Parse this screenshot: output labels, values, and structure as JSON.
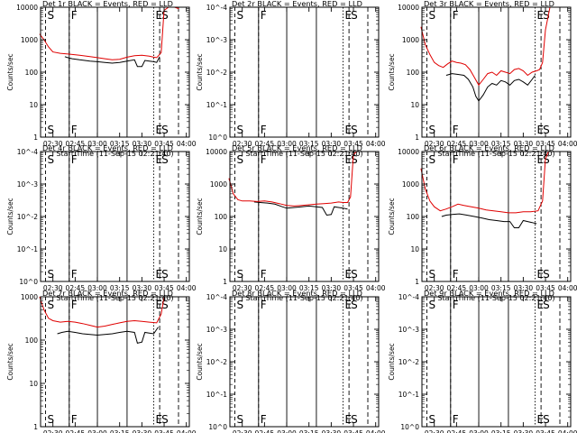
{
  "figure": {
    "x_axis_label": "Start Time (11-Sep-15 02:21:40)",
    "y_axis_label": "Counts/sec",
    "x_tick_labels": [
      "02:30",
      "02:45",
      "03:00",
      "03:15",
      "03:30",
      "03:45",
      "04:00"
    ],
    "y_tick_labels_decades": [
      "1",
      "10",
      "100",
      "1000",
      "10000"
    ],
    "y_tick_labels_flat": [
      "10^0",
      "10^-1",
      "10^-2",
      "10^-3",
      "10^-4"
    ],
    "colors": {
      "events": "#000000",
      "lld": "#e00000",
      "axes": "#000000"
    }
  },
  "chart_data": [
    {
      "id": "det1",
      "type": "line",
      "title": "Det 1r BLACK = Events, RED = LLD",
      "y_scale": "log",
      "ylim": [
        1,
        10000
      ],
      "xlim": [
        "02:21:40",
        "04:02:00"
      ],
      "has_data": true,
      "markers": [
        {
          "label": "S",
          "time": "02:25"
        },
        {
          "label": "F",
          "time": "02:41"
        },
        {
          "label": "E",
          "time": "03:38"
        },
        {
          "label": "S",
          "time": "03:42"
        }
      ],
      "series": [
        {
          "name": "BLACK = Events",
          "color": "#000000",
          "x": [
            "02:38",
            "02:40",
            "02:43",
            "02:48",
            "02:55",
            "03:00",
            "03:05",
            "03:10",
            "03:15",
            "03:20",
            "03:25",
            "03:27",
            "03:30",
            "03:32",
            "03:35",
            "03:38",
            "03:40",
            "03:42"
          ],
          "y": [
            300,
            280,
            260,
            240,
            220,
            210,
            200,
            190,
            200,
            220,
            240,
            150,
            150,
            230,
            220,
            210,
            200,
            300
          ]
        },
        {
          "name": "RED = LLD",
          "color": "#e00000",
          "x": [
            "02:21",
            "02:24",
            "02:27",
            "02:30",
            "02:35",
            "02:41",
            "02:43",
            "02:48",
            "02:55",
            "03:00",
            "03:05",
            "03:10",
            "03:15",
            "03:20",
            "03:25",
            "03:30",
            "03:35",
            "03:38",
            "03:40",
            "03:43",
            "03:45",
            "03:48",
            "03:52",
            "03:55"
          ],
          "y": [
            1500,
            1000,
            600,
            420,
            380,
            360,
            350,
            330,
            300,
            280,
            260,
            240,
            250,
            290,
            320,
            330,
            310,
            290,
            280,
            400,
            8000,
            10000,
            10000,
            9000
          ]
        }
      ]
    },
    {
      "id": "det2",
      "type": "line",
      "title": "Det 2r BLACK = Events, RED = LLD",
      "y_scale": "log",
      "ylim": [
        1,
        10000
      ],
      "xlim": [
        "02:21:40",
        "04:02:00"
      ],
      "has_data": false,
      "markers": [
        {
          "label": "S",
          "time": "02:25"
        },
        {
          "label": "F",
          "time": "02:41"
        },
        {
          "label": "E",
          "time": "03:38"
        },
        {
          "label": "S",
          "time": "03:42"
        }
      ],
      "series": []
    },
    {
      "id": "det3",
      "type": "line",
      "title": "Det 3r BLACK = Events, RED = LLD",
      "y_scale": "log",
      "ylim": [
        1,
        10000
      ],
      "xlim": [
        "02:21:40",
        "04:02:00"
      ],
      "has_data": true,
      "markers": [
        {
          "label": "S",
          "time": "02:25"
        },
        {
          "label": "F",
          "time": "02:41"
        },
        {
          "label": "E",
          "time": "03:38"
        },
        {
          "label": "S",
          "time": "03:42"
        }
      ],
      "series": [
        {
          "name": "BLACK = Events",
          "color": "#000000",
          "x": [
            "02:38",
            "02:42",
            "02:46",
            "02:50",
            "02:53",
            "02:56",
            "02:58",
            "03:00",
            "03:03",
            "03:06",
            "03:09",
            "03:12",
            "03:15",
            "03:18",
            "03:21",
            "03:24",
            "03:27",
            "03:30",
            "03:33",
            "03:36",
            "03:38"
          ],
          "y": [
            80,
            90,
            85,
            80,
            60,
            35,
            18,
            13,
            20,
            35,
            45,
            40,
            55,
            50,
            40,
            55,
            60,
            50,
            40,
            60,
            80
          ]
        },
        {
          "name": "RED = LLD",
          "color": "#e00000",
          "x": [
            "02:21",
            "02:24",
            "02:27",
            "02:30",
            "02:33",
            "02:36",
            "02:39",
            "02:42",
            "02:45",
            "02:48",
            "02:51",
            "02:54",
            "02:57",
            "03:00",
            "03:03",
            "03:06",
            "03:09",
            "03:12",
            "03:15",
            "03:18",
            "03:21",
            "03:24",
            "03:27",
            "03:30",
            "03:33",
            "03:36",
            "03:39",
            "03:41",
            "03:43",
            "03:45",
            "03:48",
            "03:52"
          ],
          "y": [
            2500,
            700,
            350,
            200,
            160,
            140,
            180,
            220,
            200,
            190,
            170,
            120,
            70,
            40,
            60,
            90,
            100,
            80,
            110,
            100,
            90,
            120,
            130,
            110,
            80,
            100,
            110,
            120,
            200,
            2000,
            10000,
            10000
          ]
        }
      ]
    },
    {
      "id": "det4",
      "type": "line",
      "title": "Det 4r BLACK = Events, RED = LLD",
      "y_scale": "log",
      "ylim": [
        1,
        10000
      ],
      "xlim": [
        "02:21:40",
        "04:02:00"
      ],
      "has_data": false,
      "markers": [
        {
          "label": "S",
          "time": "02:25"
        },
        {
          "label": "F",
          "time": "02:41"
        },
        {
          "label": "E",
          "time": "03:38"
        },
        {
          "label": "S",
          "time": "03:42"
        }
      ],
      "series": []
    },
    {
      "id": "det5",
      "type": "line",
      "title": "Det 5r BLACK = Events, RED = LLD",
      "y_scale": "log",
      "ylim": [
        1,
        10000
      ],
      "xlim": [
        "02:21:40",
        "04:02:00"
      ],
      "has_data": true,
      "markers": [
        {
          "label": "S",
          "time": "02:25"
        },
        {
          "label": "F",
          "time": "02:41"
        },
        {
          "label": "E",
          "time": "03:38"
        },
        {
          "label": "S",
          "time": "03:42"
        }
      ],
      "series": [
        {
          "name": "BLACK = Events",
          "color": "#000000",
          "x": [
            "02:38",
            "02:42",
            "02:47",
            "02:52",
            "02:57",
            "03:00",
            "03:05",
            "03:10",
            "03:15",
            "03:20",
            "03:24",
            "03:27",
            "03:30",
            "03:32",
            "03:35",
            "03:38",
            "03:41"
          ],
          "y": [
            280,
            270,
            260,
            240,
            200,
            180,
            190,
            200,
            210,
            200,
            190,
            110,
            115,
            200,
            190,
            180,
            170
          ]
        },
        {
          "name": "RED = LLD",
          "color": "#e00000",
          "x": [
            "02:21",
            "02:24",
            "02:27",
            "02:30",
            "02:35",
            "02:40",
            "02:45",
            "02:50",
            "02:55",
            "03:00",
            "03:05",
            "03:10",
            "03:15",
            "03:20",
            "03:25",
            "03:30",
            "03:35",
            "03:38",
            "03:41",
            "03:43",
            "03:45",
            "03:47",
            "03:52"
          ],
          "y": [
            1500,
            500,
            330,
            300,
            300,
            290,
            300,
            280,
            250,
            220,
            210,
            220,
            230,
            240,
            250,
            260,
            280,
            270,
            270,
            400,
            8000,
            10000,
            10000
          ]
        }
      ]
    },
    {
      "id": "det6",
      "type": "line",
      "title": "Det 6r BLACK = Events, RED = LLD",
      "y_scale": "log",
      "ylim": [
        1,
        10000
      ],
      "xlim": [
        "02:21:40",
        "04:02:00"
      ],
      "has_data": true,
      "markers": [
        {
          "label": "S",
          "time": "02:25"
        },
        {
          "label": "F",
          "time": "02:41"
        },
        {
          "label": "E",
          "time": "03:38"
        },
        {
          "label": "S",
          "time": "03:42"
        }
      ],
      "series": [
        {
          "name": "BLACK = Events",
          "color": "#000000",
          "x": [
            "02:35",
            "02:38",
            "02:42",
            "02:47",
            "02:52",
            "02:57",
            "03:02",
            "03:07",
            "03:12",
            "03:17",
            "03:21",
            "03:24",
            "03:27",
            "03:30",
            "03:33",
            "03:36",
            "03:39"
          ],
          "y": [
            100,
            110,
            115,
            120,
            110,
            100,
            90,
            80,
            75,
            70,
            70,
            45,
            45,
            75,
            70,
            65,
            60
          ]
        },
        {
          "name": "RED = LLD",
          "color": "#e00000",
          "x": [
            "02:21",
            "02:24",
            "02:27",
            "02:30",
            "02:34",
            "02:38",
            "02:42",
            "02:46",
            "02:50",
            "02:55",
            "03:00",
            "03:05",
            "03:10",
            "03:15",
            "03:20",
            "03:25",
            "03:30",
            "03:35",
            "03:40",
            "03:43",
            "03:45",
            "03:47",
            "03:52"
          ],
          "y": [
            3000,
            700,
            300,
            200,
            150,
            170,
            200,
            240,
            220,
            200,
            180,
            160,
            150,
            140,
            130,
            130,
            140,
            140,
            150,
            300,
            6000,
            10000,
            10000
          ]
        }
      ]
    },
    {
      "id": "det7",
      "type": "line",
      "title": "Det 7r BLACK = Events, RED = LLD",
      "y_scale": "log",
      "ylim": [
        1,
        1000
      ],
      "xlim": [
        "02:21:40",
        "04:02:00"
      ],
      "has_data": true,
      "markers": [
        {
          "label": "S",
          "time": "02:25"
        },
        {
          "label": "F",
          "time": "02:41"
        },
        {
          "label": "E",
          "time": "03:38"
        },
        {
          "label": "S",
          "time": "03:42"
        }
      ],
      "series": [
        {
          "name": "BLACK = Events",
          "color": "#000000",
          "x": [
            "02:33",
            "02:36",
            "02:40",
            "02:45",
            "02:50",
            "02:55",
            "03:00",
            "03:05",
            "03:10",
            "03:15",
            "03:20",
            "03:25",
            "03:27",
            "03:30",
            "03:32",
            "03:35",
            "03:38",
            "03:41"
          ],
          "y": [
            140,
            150,
            160,
            150,
            140,
            135,
            130,
            135,
            140,
            150,
            160,
            150,
            85,
            90,
            150,
            145,
            140,
            200
          ]
        },
        {
          "name": "RED = LLD",
          "color": "#e00000",
          "x": [
            "02:21",
            "02:24",
            "02:27",
            "02:30",
            "02:35",
            "02:40",
            "02:45",
            "02:50",
            "02:55",
            "03:00",
            "03:05",
            "03:10",
            "03:15",
            "03:20",
            "03:25",
            "03:30",
            "03:35",
            "03:40",
            "03:43",
            "03:45",
            "03:47",
            "03:52"
          ],
          "y": [
            1000,
            500,
            320,
            280,
            260,
            270,
            260,
            240,
            220,
            200,
            210,
            230,
            250,
            270,
            280,
            270,
            260,
            250,
            400,
            1000,
            1000,
            1000
          ]
        }
      ]
    },
    {
      "id": "det8",
      "type": "line",
      "title": "Det 8r BLACK = Events, RED = LLD",
      "y_scale": "log",
      "ylim": [
        1,
        10000
      ],
      "xlim": [
        "02:21:40",
        "04:02:00"
      ],
      "has_data": false,
      "markers": [
        {
          "label": "S",
          "time": "02:25"
        },
        {
          "label": "F",
          "time": "02:41"
        },
        {
          "label": "E",
          "time": "03:38"
        },
        {
          "label": "S",
          "time": "03:42"
        }
      ],
      "series": []
    },
    {
      "id": "det9",
      "type": "line",
      "title": "Det 9r BLACK = Events, RED = LLD",
      "y_scale": "log",
      "ylim": [
        1,
        10000
      ],
      "xlim": [
        "02:21:40",
        "04:02:00"
      ],
      "has_data": false,
      "markers": [
        {
          "label": "S",
          "time": "02:25"
        },
        {
          "label": "F",
          "time": "02:41"
        },
        {
          "label": "E",
          "time": "03:38"
        },
        {
          "label": "S",
          "time": "03:42"
        }
      ],
      "series": []
    }
  ]
}
